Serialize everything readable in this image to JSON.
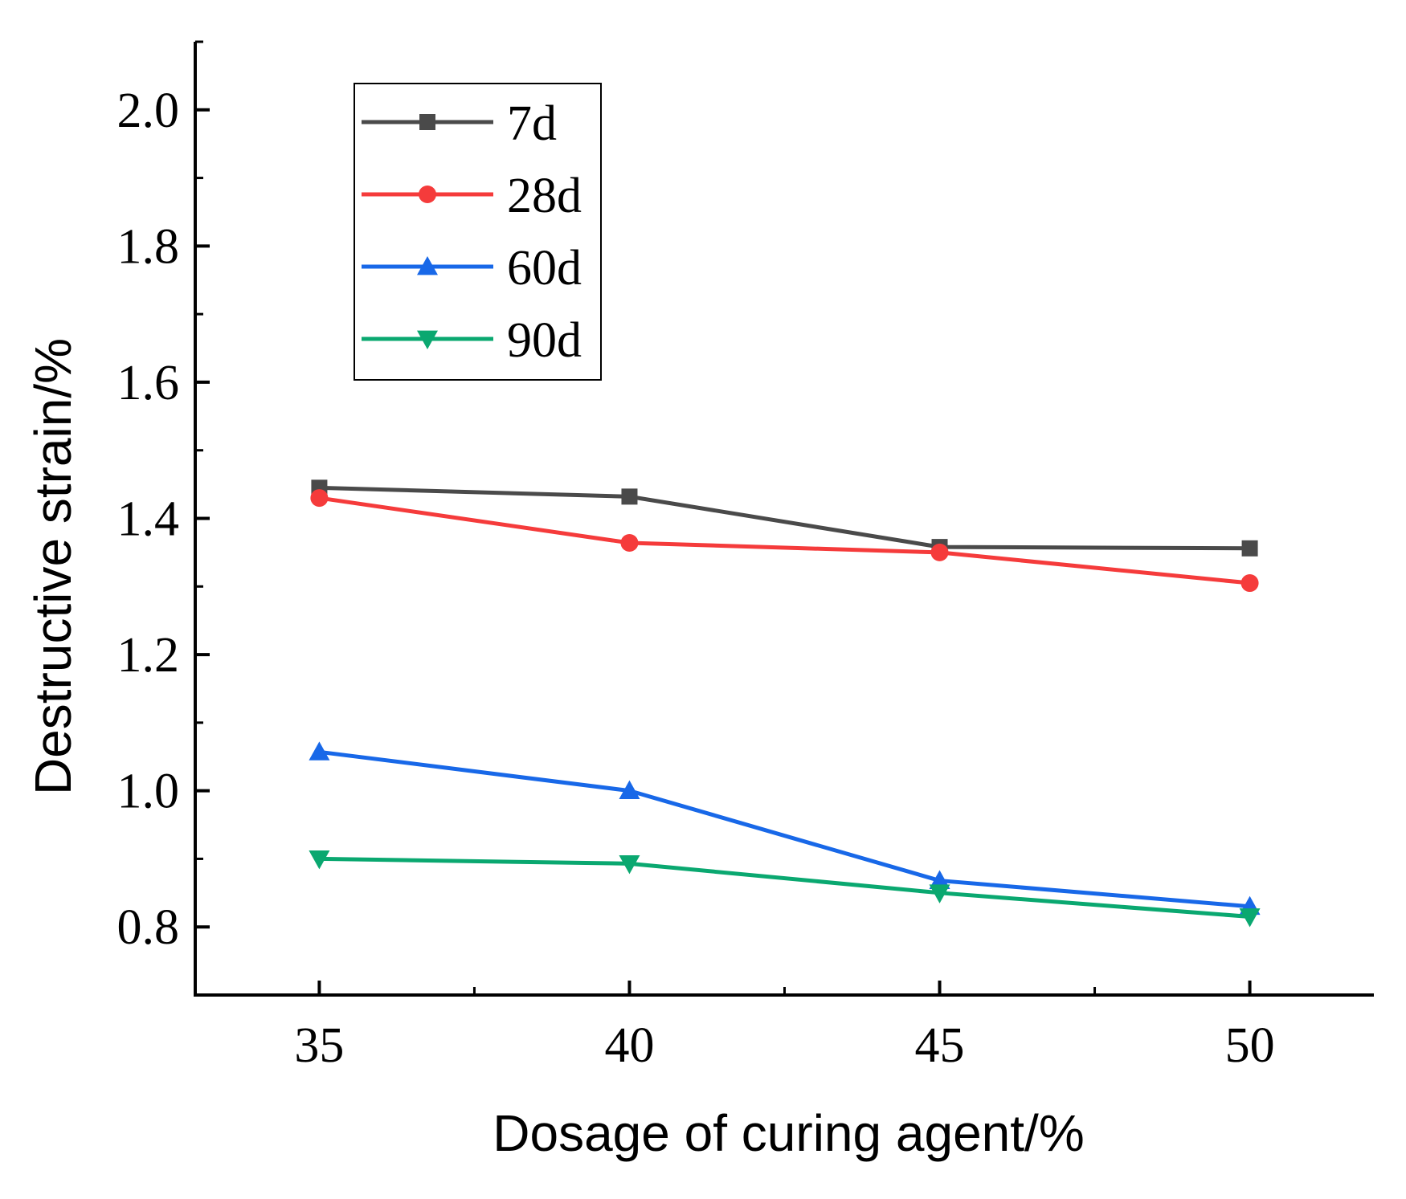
{
  "chart_data": {
    "type": "line",
    "title": "",
    "xlabel": "Dosage of curing agent/%",
    "ylabel": "Destructive strain/%",
    "x": [
      35,
      40,
      45,
      50
    ],
    "xlim": [
      33,
      52
    ],
    "ylim": [
      0.7,
      2.1
    ],
    "xticks": [
      "35",
      "40",
      "45",
      "50"
    ],
    "yticks": [
      "0.8",
      "1.0",
      "1.2",
      "1.4",
      "1.6",
      "1.8",
      "2.0"
    ],
    "grid": false,
    "legend_position": "top-left",
    "series": [
      {
        "name": "7d",
        "color": "#4a4a4a",
        "marker": "square",
        "values": [
          1.445,
          1.432,
          1.358,
          1.356
        ]
      },
      {
        "name": "28d",
        "color": "#f53b3b",
        "marker": "circle",
        "values": [
          1.43,
          1.364,
          1.35,
          1.305
        ]
      },
      {
        "name": "60d",
        "color": "#1868e8",
        "marker": "triangle-up",
        "values": [
          1.057,
          1.0,
          0.868,
          0.83
        ]
      },
      {
        "name": "90d",
        "color": "#0aa870",
        "marker": "triangle-down",
        "values": [
          0.9,
          0.893,
          0.85,
          0.815
        ]
      }
    ]
  }
}
